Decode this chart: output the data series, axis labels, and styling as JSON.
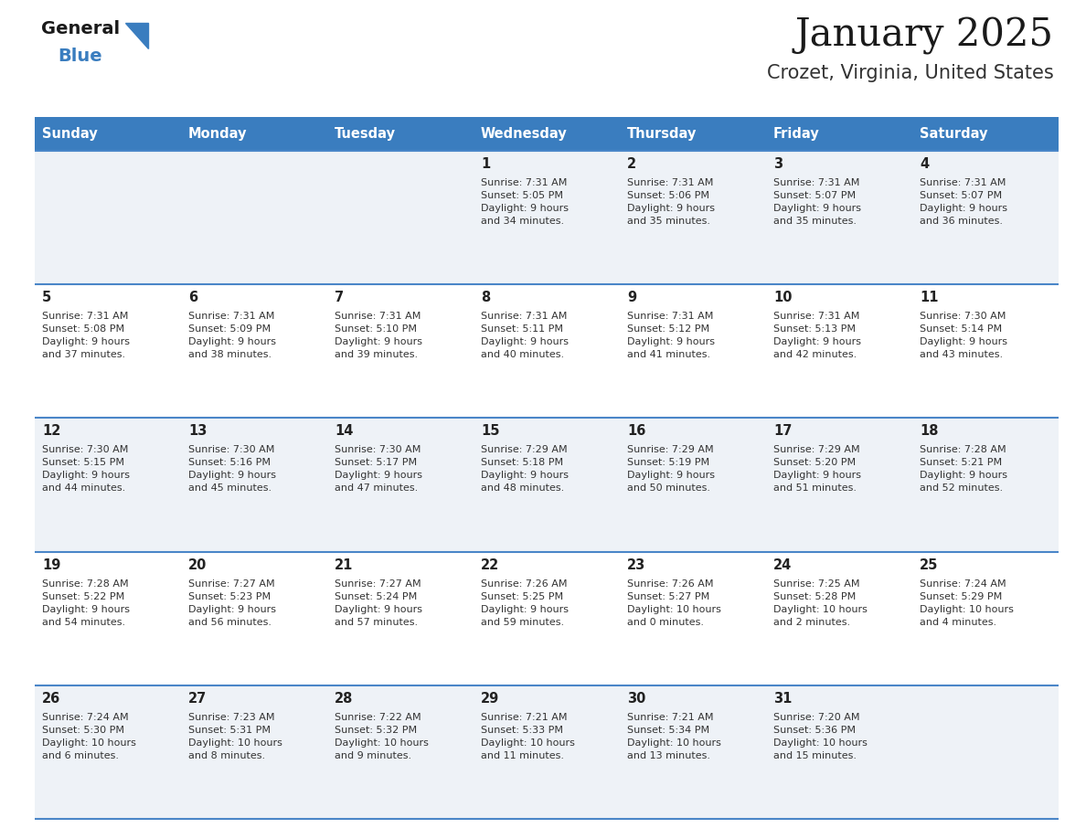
{
  "title": "January 2025",
  "subtitle": "Crozet, Virginia, United States",
  "days_of_week": [
    "Sunday",
    "Monday",
    "Tuesday",
    "Wednesday",
    "Thursday",
    "Friday",
    "Saturday"
  ],
  "header_bg": "#3a7dbf",
  "header_text": "#ffffff",
  "row_bg_light": "#eef2f7",
  "row_bg_white": "#ffffff",
  "separator_color": "#4a86c8",
  "day_number_color": "#222222",
  "cell_text_color": "#333333",
  "title_color": "#1a1a1a",
  "subtitle_color": "#333333",
  "logo_general_color": "#1a1a1a",
  "logo_blue_color": "#3a7dbf",
  "logo_triangle_color": "#3a7dbf",
  "calendar_data": [
    [
      {
        "day": null,
        "sunrise": null,
        "sunset": null,
        "daylight": null
      },
      {
        "day": null,
        "sunrise": null,
        "sunset": null,
        "daylight": null
      },
      {
        "day": null,
        "sunrise": null,
        "sunset": null,
        "daylight": null
      },
      {
        "day": 1,
        "sunrise": "7:31 AM",
        "sunset": "5:05 PM",
        "daylight": "9 hours\nand 34 minutes."
      },
      {
        "day": 2,
        "sunrise": "7:31 AM",
        "sunset": "5:06 PM",
        "daylight": "9 hours\nand 35 minutes."
      },
      {
        "day": 3,
        "sunrise": "7:31 AM",
        "sunset": "5:07 PM",
        "daylight": "9 hours\nand 35 minutes."
      },
      {
        "day": 4,
        "sunrise": "7:31 AM",
        "sunset": "5:07 PM",
        "daylight": "9 hours\nand 36 minutes."
      }
    ],
    [
      {
        "day": 5,
        "sunrise": "7:31 AM",
        "sunset": "5:08 PM",
        "daylight": "9 hours\nand 37 minutes."
      },
      {
        "day": 6,
        "sunrise": "7:31 AM",
        "sunset": "5:09 PM",
        "daylight": "9 hours\nand 38 minutes."
      },
      {
        "day": 7,
        "sunrise": "7:31 AM",
        "sunset": "5:10 PM",
        "daylight": "9 hours\nand 39 minutes."
      },
      {
        "day": 8,
        "sunrise": "7:31 AM",
        "sunset": "5:11 PM",
        "daylight": "9 hours\nand 40 minutes."
      },
      {
        "day": 9,
        "sunrise": "7:31 AM",
        "sunset": "5:12 PM",
        "daylight": "9 hours\nand 41 minutes."
      },
      {
        "day": 10,
        "sunrise": "7:31 AM",
        "sunset": "5:13 PM",
        "daylight": "9 hours\nand 42 minutes."
      },
      {
        "day": 11,
        "sunrise": "7:30 AM",
        "sunset": "5:14 PM",
        "daylight": "9 hours\nand 43 minutes."
      }
    ],
    [
      {
        "day": 12,
        "sunrise": "7:30 AM",
        "sunset": "5:15 PM",
        "daylight": "9 hours\nand 44 minutes."
      },
      {
        "day": 13,
        "sunrise": "7:30 AM",
        "sunset": "5:16 PM",
        "daylight": "9 hours\nand 45 minutes."
      },
      {
        "day": 14,
        "sunrise": "7:30 AM",
        "sunset": "5:17 PM",
        "daylight": "9 hours\nand 47 minutes."
      },
      {
        "day": 15,
        "sunrise": "7:29 AM",
        "sunset": "5:18 PM",
        "daylight": "9 hours\nand 48 minutes."
      },
      {
        "day": 16,
        "sunrise": "7:29 AM",
        "sunset": "5:19 PM",
        "daylight": "9 hours\nand 50 minutes."
      },
      {
        "day": 17,
        "sunrise": "7:29 AM",
        "sunset": "5:20 PM",
        "daylight": "9 hours\nand 51 minutes."
      },
      {
        "day": 18,
        "sunrise": "7:28 AM",
        "sunset": "5:21 PM",
        "daylight": "9 hours\nand 52 minutes."
      }
    ],
    [
      {
        "day": 19,
        "sunrise": "7:28 AM",
        "sunset": "5:22 PM",
        "daylight": "9 hours\nand 54 minutes."
      },
      {
        "day": 20,
        "sunrise": "7:27 AM",
        "sunset": "5:23 PM",
        "daylight": "9 hours\nand 56 minutes."
      },
      {
        "day": 21,
        "sunrise": "7:27 AM",
        "sunset": "5:24 PM",
        "daylight": "9 hours\nand 57 minutes."
      },
      {
        "day": 22,
        "sunrise": "7:26 AM",
        "sunset": "5:25 PM",
        "daylight": "9 hours\nand 59 minutes."
      },
      {
        "day": 23,
        "sunrise": "7:26 AM",
        "sunset": "5:27 PM",
        "daylight": "10 hours\nand 0 minutes."
      },
      {
        "day": 24,
        "sunrise": "7:25 AM",
        "sunset": "5:28 PM",
        "daylight": "10 hours\nand 2 minutes."
      },
      {
        "day": 25,
        "sunrise": "7:24 AM",
        "sunset": "5:29 PM",
        "daylight": "10 hours\nand 4 minutes."
      }
    ],
    [
      {
        "day": 26,
        "sunrise": "7:24 AM",
        "sunset": "5:30 PM",
        "daylight": "10 hours\nand 6 minutes."
      },
      {
        "day": 27,
        "sunrise": "7:23 AM",
        "sunset": "5:31 PM",
        "daylight": "10 hours\nand 8 minutes."
      },
      {
        "day": 28,
        "sunrise": "7:22 AM",
        "sunset": "5:32 PM",
        "daylight": "10 hours\nand 9 minutes."
      },
      {
        "day": 29,
        "sunrise": "7:21 AM",
        "sunset": "5:33 PM",
        "daylight": "10 hours\nand 11 minutes."
      },
      {
        "day": 30,
        "sunrise": "7:21 AM",
        "sunset": "5:34 PM",
        "daylight": "10 hours\nand 13 minutes."
      },
      {
        "day": 31,
        "sunrise": "7:20 AM",
        "sunset": "5:36 PM",
        "daylight": "10 hours\nand 15 minutes."
      },
      {
        "day": null,
        "sunrise": null,
        "sunset": null,
        "daylight": null
      }
    ]
  ]
}
